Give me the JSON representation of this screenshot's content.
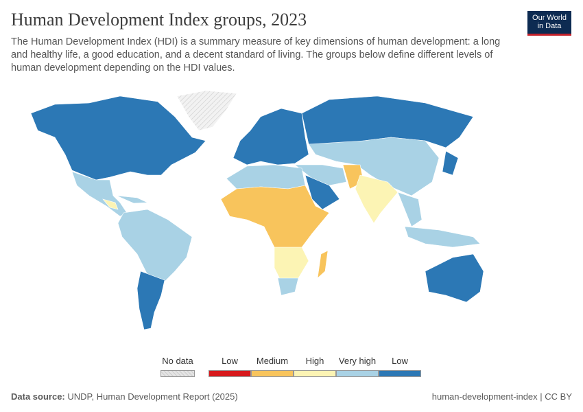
{
  "header": {
    "title": "Human Development Index groups, 2023",
    "subtitle": "The Human Development Index (HDI) is a summary measure of key dimensions of human development: a long and healthy life, a good education, and a decent standard of living. The groups below define different levels of human development depending on the HDI values.",
    "logo": [
      "Our World",
      "in Data"
    ]
  },
  "legend": {
    "items": [
      {
        "label": "No data",
        "color": "#e4e4e4"
      },
      {
        "label": "Low",
        "color": "#d7191c"
      },
      {
        "label": "Medium",
        "color": "#f8c45c"
      },
      {
        "label": "High",
        "color": "#fcf4b4"
      },
      {
        "label": "Very high",
        "color": "#a9d2e5"
      },
      {
        "label": "Low",
        "color": "#2c78b5"
      }
    ]
  },
  "footer": {
    "source_label": "Data source:",
    "source": "UNDP, Human Development Report (2025)",
    "slug": "human-development-index | CC BY"
  }
}
